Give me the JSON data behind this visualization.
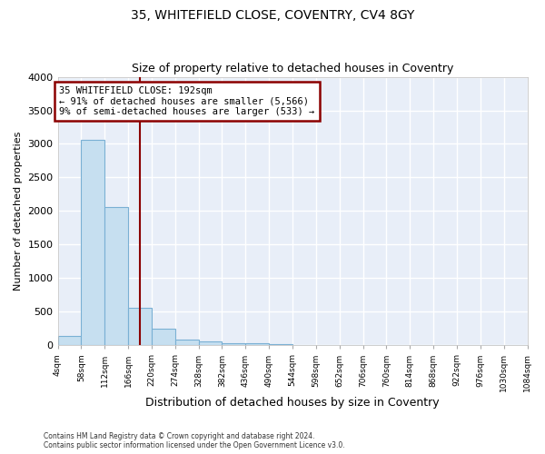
{
  "title_line1": "35, WHITEFIELD CLOSE, COVENTRY, CV4 8GY",
  "title_line2": "Size of property relative to detached houses in Coventry",
  "xlabel": "Distribution of detached houses by size in Coventry",
  "ylabel": "Number of detached properties",
  "footnote": "Contains HM Land Registry data © Crown copyright and database right 2024.\nContains public sector information licensed under the Open Government Licence v3.0.",
  "bin_edges": [
    4,
    58,
    112,
    166,
    220,
    274,
    328,
    382,
    436,
    490,
    544,
    598,
    652,
    706,
    760,
    814,
    868,
    922,
    976,
    1030,
    1084
  ],
  "bar_heights": [
    140,
    3060,
    2060,
    560,
    250,
    80,
    55,
    35,
    25,
    15,
    0,
    0,
    0,
    0,
    0,
    0,
    0,
    0,
    0,
    0
  ],
  "property_size": 192,
  "bar_color": "#c6dff0",
  "bar_edge_color": "#7ab0d4",
  "vline_color": "#8b0000",
  "annotation_text": "35 WHITEFIELD CLOSE: 192sqm\n← 91% of detached houses are smaller (5,566)\n9% of semi-detached houses are larger (533) →",
  "annotation_box_color": "#8b0000",
  "ylim": [
    0,
    4000
  ],
  "yticks": [
    0,
    500,
    1000,
    1500,
    2000,
    2500,
    3000,
    3500,
    4000
  ],
  "bg_color": "#e8eef8",
  "grid_color": "#ffffff",
  "title1_fontsize": 10,
  "title2_fontsize": 9,
  "figsize": [
    6.0,
    5.0
  ],
  "dpi": 100
}
